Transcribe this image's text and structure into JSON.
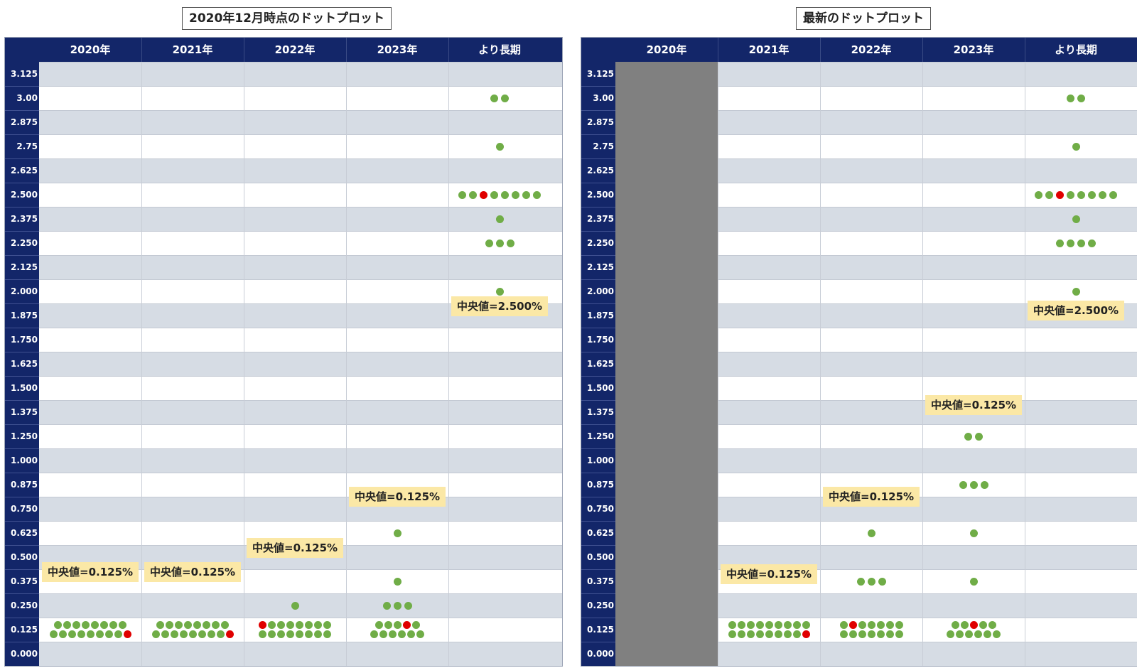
{
  "colors": {
    "header_bg": "#132669",
    "shade": "#d6dce4",
    "dot": "#70ad47",
    "dot_highlight": "#e00000",
    "median_bg": "#fbe8a6",
    "nodata": "#808080"
  },
  "chart_data": [
    {
      "type": "scatter",
      "title": "2020年12月時点のドットプロット",
      "categories": [
        "2020年",
        "2021年",
        "2022年",
        "2023年",
        "より長期"
      ],
      "y_ticks": [
        "3.125",
        "3.00",
        "2.875",
        "2.75",
        "2.625",
        "2.500",
        "2.375",
        "2.250",
        "2.125",
        "2.000",
        "1.875",
        "1.750",
        "1.625",
        "1.500",
        "1.375",
        "1.250",
        "1.000",
        "0.875",
        "0.750",
        "0.625",
        "0.500",
        "0.375",
        "0.250",
        "0.125",
        "0.000"
      ],
      "ylim": [
        0,
        3.125
      ],
      "nodata_columns": [],
      "dots": [
        {
          "col": 0,
          "y": 0.125,
          "count": 17,
          "red": [
            16
          ]
        },
        {
          "col": 1,
          "y": 0.125,
          "count": 17,
          "red": [
            16
          ]
        },
        {
          "col": 2,
          "y": 0.125,
          "count": 16,
          "red": [
            0
          ]
        },
        {
          "col": 2,
          "y": 0.25,
          "count": 1,
          "red": []
        },
        {
          "col": 3,
          "y": 0.125,
          "count": 11,
          "red": [
            3
          ]
        },
        {
          "col": 3,
          "y": 0.25,
          "count": 3,
          "red": []
        },
        {
          "col": 3,
          "y": 0.375,
          "count": 1,
          "red": []
        },
        {
          "col": 3,
          "y": 0.625,
          "count": 1,
          "red": []
        },
        {
          "col": 4,
          "y": 2.0,
          "count": 1,
          "red": []
        },
        {
          "col": 4,
          "y": 2.25,
          "count": 3,
          "red": []
        },
        {
          "col": 4,
          "y": 2.375,
          "count": 1,
          "red": []
        },
        {
          "col": 4,
          "y": 2.5,
          "count": 8,
          "red": [
            2
          ]
        },
        {
          "col": 4,
          "y": 2.75,
          "count": 1,
          "red": []
        },
        {
          "col": 4,
          "y": 3.0,
          "count": 2,
          "red": []
        }
      ],
      "medians": [
        {
          "col": 0,
          "text": "中央値=0.125%",
          "y": 0.36
        },
        {
          "col": 1,
          "text": "中央値=0.125%",
          "y": 0.36
        },
        {
          "col": 2,
          "text": "中央値=0.125%",
          "y": 0.485
        },
        {
          "col": 3,
          "text": "中央値=0.125%",
          "y": 0.75
        },
        {
          "col": 4,
          "text": "中央値=2.500%",
          "y": 1.86
        }
      ]
    },
    {
      "type": "scatter",
      "title": "最新のドットプロット",
      "categories": [
        "2020年",
        "2021年",
        "2022年",
        "2023年",
        "より長期"
      ],
      "y_ticks": [
        "3.125",
        "3.00",
        "2.875",
        "2.75",
        "2.625",
        "2.500",
        "2.375",
        "2.250",
        "2.125",
        "2.000",
        "1.875",
        "1.750",
        "1.625",
        "1.500",
        "1.375",
        "1.250",
        "1.000",
        "0.875",
        "0.750",
        "0.625",
        "0.500",
        "0.375",
        "0.250",
        "0.125",
        "0.000"
      ],
      "ylim": [
        0,
        3.125
      ],
      "nodata_columns": [
        0
      ],
      "dots": [
        {
          "col": 1,
          "y": 0.125,
          "count": 18,
          "red": [
            17
          ]
        },
        {
          "col": 2,
          "y": 0.125,
          "count": 14,
          "red": [
            1
          ]
        },
        {
          "col": 2,
          "y": 0.375,
          "count": 3,
          "red": []
        },
        {
          "col": 2,
          "y": 0.625,
          "count": 1,
          "red": []
        },
        {
          "col": 3,
          "y": 0.125,
          "count": 11,
          "red": [
            2
          ]
        },
        {
          "col": 3,
          "y": 0.375,
          "count": 1,
          "red": []
        },
        {
          "col": 3,
          "y": 0.625,
          "count": 1,
          "red": []
        },
        {
          "col": 3,
          "y": 0.875,
          "count": 3,
          "red": []
        },
        {
          "col": 3,
          "y": 1.25,
          "count": 2,
          "red": []
        },
        {
          "col": 4,
          "y": 2.0,
          "count": 1,
          "red": []
        },
        {
          "col": 4,
          "y": 2.25,
          "count": 4,
          "red": []
        },
        {
          "col": 4,
          "y": 2.375,
          "count": 1,
          "red": []
        },
        {
          "col": 4,
          "y": 2.5,
          "count": 8,
          "red": [
            2
          ]
        },
        {
          "col": 4,
          "y": 2.75,
          "count": 1,
          "red": []
        },
        {
          "col": 4,
          "y": 3.0,
          "count": 2,
          "red": []
        }
      ],
      "medians": [
        {
          "col": 1,
          "text": "中央値=0.125%",
          "y": 0.35
        },
        {
          "col": 2,
          "text": "中央値=0.125%",
          "y": 0.75
        },
        {
          "col": 3,
          "text": "中央値=0.125%",
          "y": 1.35
        },
        {
          "col": 4,
          "text": "中央値=2.500%",
          "y": 1.84
        }
      ]
    }
  ]
}
